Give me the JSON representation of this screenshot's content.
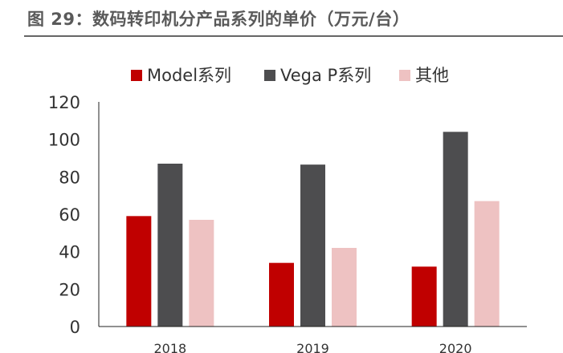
{
  "figure_title": "图 29：数码转印机分产品系列的单价（万元/台）",
  "chart_data": {
    "type": "bar",
    "title": "",
    "xlabel": "",
    "ylabel": "",
    "categories": [
      "2018",
      "2019",
      "2020"
    ],
    "series": [
      {
        "name": "Model系列",
        "color": "#c00000",
        "values": [
          59,
          34,
          32
        ]
      },
      {
        "name": "Vega P系列",
        "color": "#4d4d4f",
        "values": [
          87,
          86.5,
          104
        ]
      },
      {
        "name": "其他",
        "color": "#eec2c2",
        "values": [
          57,
          42,
          67
        ]
      }
    ],
    "ylim": [
      0,
      120
    ],
    "yticks": [
      0,
      20,
      40,
      60,
      80,
      100,
      120
    ],
    "grid": false,
    "legend_position": "top"
  }
}
